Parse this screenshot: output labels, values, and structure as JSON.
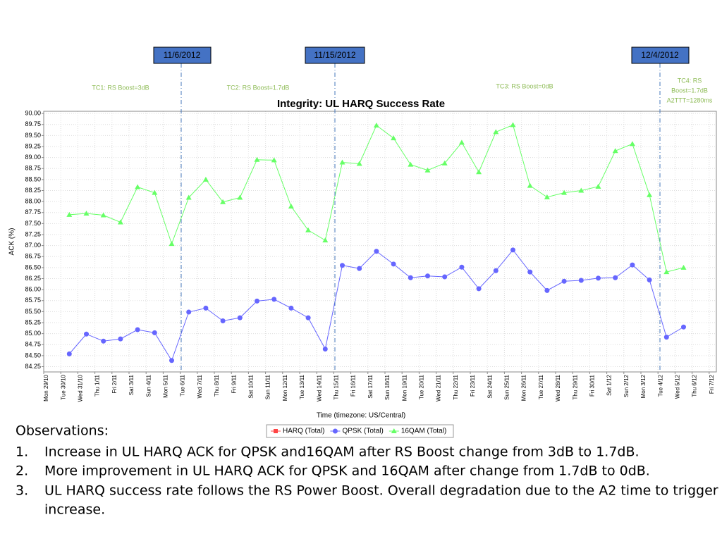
{
  "annotations": {
    "markers": [
      "11/6/2012",
      "11/15/2012",
      "12/4/2012"
    ],
    "phases": [
      "TC1: RS Boost=3dB",
      "TC2: RS Boost=1.7dB",
      "TC3: RS Boost=0dB",
      [
        "TC4: RS",
        "Boost=1.7dB",
        "A2TTT=1280ms"
      ]
    ]
  },
  "chart_data": {
    "type": "line",
    "title": "Integrity: UL HARQ Success Rate",
    "x_label": "Time (timezone: US/Central)",
    "y_label": "ACK (%)",
    "grid": true,
    "categories": [
      "Mon 29/10",
      "Tue 30/10",
      "Wed 31/10",
      "Thu 1/11",
      "Fri 2/11",
      "Sat 3/11",
      "Sun 4/11",
      "Mon 5/11",
      "Tue 6/11",
      "Wed 7/11",
      "Thu 8/11",
      "Fri 9/11",
      "Sat 10/11",
      "Sun 11/11",
      "Mon 12/11",
      "Tue 13/11",
      "Wed 14/11",
      "Thu 15/11",
      "Fri 16/11",
      "Sat 17/11",
      "Sun 18/11",
      "Mon 19/11",
      "Tue 20/11",
      "Wed 21/11",
      "Thu 22/11",
      "Fri 23/11",
      "Sat 24/11",
      "Sun 25/11",
      "Mon 26/11",
      "Tue 27/11",
      "Wed 28/11",
      "Thu 29/11",
      "Fri 30/11",
      "Sat 1/12",
      "Sun 2/12",
      "Mon 3/12",
      "Tue 4/12",
      "Wed 5/12",
      "Thu 6/12",
      "Fri 7/12"
    ],
    "ylim": [
      84.13,
      90.05
    ],
    "yticks": [
      84.25,
      {
        "value": 84.5,
        "label": "84.50"
      },
      84.75,
      {
        "value": 85,
        "label": "85.00"
      },
      85.25,
      {
        "value": 85.5,
        "label": "85.50"
      },
      85.75,
      {
        "value": 86,
        "label": "86.00"
      },
      86.25,
      {
        "value": 86.5,
        "label": "86.50"
      },
      86.75,
      {
        "value": 87,
        "label": "87.00"
      },
      87.25,
      {
        "value": 87.5,
        "label": "87.50"
      },
      87.75,
      {
        "value": 88,
        "label": "88.00"
      },
      88.25,
      {
        "value": 88.5,
        "label": "88.50"
      },
      88.75,
      {
        "value": 89,
        "label": "89.00"
      },
      89.25,
      {
        "value": 89.5,
        "label": "89.50"
      },
      89.75,
      {
        "value": 90,
        "label": "90.00"
      }
    ],
    "series": [
      {
        "name": "HARQ (Total)",
        "color": "#ff4444",
        "marker": "square",
        "values": [
          null,
          null,
          null,
          null,
          null,
          null,
          null,
          null,
          null,
          null,
          null,
          null,
          null,
          null,
          null,
          null,
          null,
          null,
          null,
          null,
          null,
          null,
          null,
          null,
          null,
          null,
          null,
          null,
          null,
          null,
          null,
          null,
          null,
          null,
          null,
          null,
          null,
          null,
          null,
          null
        ]
      },
      {
        "name": "QPSK (Total)",
        "color": "#6666ff",
        "marker": "circle",
        "values": [
          null,
          84.54,
          84.99,
          84.83,
          84.88,
          85.09,
          85.02,
          84.39,
          85.49,
          85.58,
          85.29,
          85.36,
          85.74,
          85.78,
          85.58,
          85.36,
          84.65,
          86.55,
          86.48,
          86.87,
          86.58,
          86.27,
          86.31,
          86.29,
          86.51,
          86.02,
          86.43,
          86.9,
          86.4,
          85.98,
          86.19,
          86.21,
          86.26,
          86.27,
          86.56,
          86.22,
          84.92,
          85.15,
          null,
          null
        ]
      },
      {
        "name": "16QAM (Total)",
        "color": "#66ff66",
        "marker": "triangle",
        "values": [
          null,
          87.7,
          87.73,
          87.69,
          87.53,
          88.33,
          88.2,
          87.04,
          88.09,
          88.5,
          87.99,
          88.09,
          88.95,
          88.94,
          87.89,
          87.35,
          87.12,
          88.89,
          88.86,
          89.73,
          89.44,
          88.84,
          88.71,
          88.87,
          89.34,
          88.67,
          89.58,
          89.74,
          88.36,
          88.1,
          88.2,
          88.25,
          88.34,
          89.15,
          89.31,
          88.15,
          86.4,
          86.5,
          null,
          null
        ]
      }
    ]
  },
  "notes": {
    "heading": "Observations:",
    "items": [
      [
        "1.",
        "Increase in UL HARQ ACK for QPSK and16QAM after RS Boost change from 3dB to 1.7dB."
      ],
      [
        "2.",
        "More improvement in UL HARQ ACK for QPSK and 16QAM after change from 1.7dB to 0dB."
      ],
      [
        "3.",
        "UL HARQ success rate follows the RS Power Boost.  Overall degradation due to the A2 time to trigger",
        "increase."
      ]
    ]
  }
}
